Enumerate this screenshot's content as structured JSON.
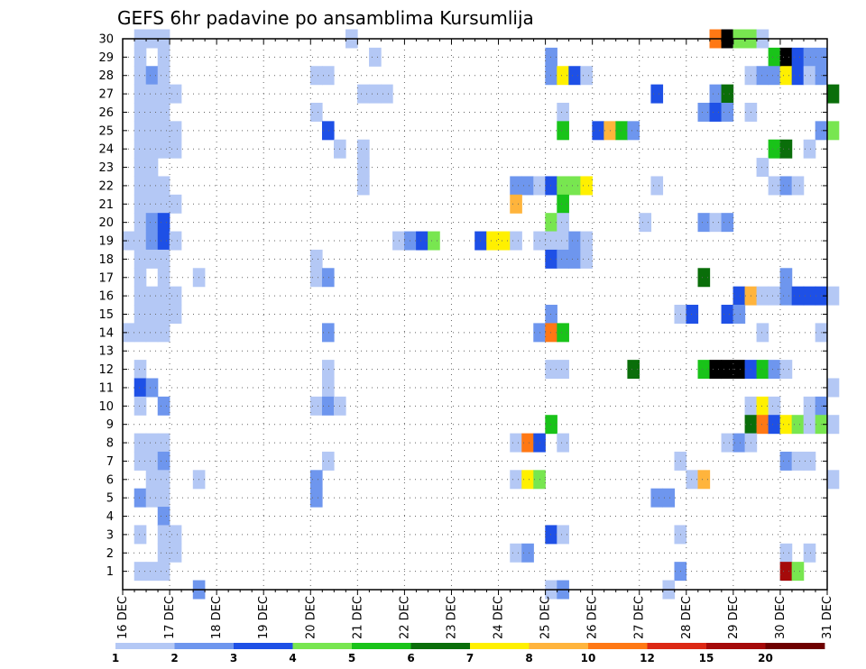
{
  "chart_data": {
    "type": "heatmap",
    "title": "GEFS 6hr padavine po ansamblima Kursumlija",
    "x_tick_labels": [
      "16 DEC",
      "17 DEC",
      "18 DEC",
      "19 DEC",
      "20 DEC",
      "21 DEC",
      "22 DEC",
      "23 DEC",
      "24 DEC",
      "25 DEC",
      "26 DEC",
      "27 DEC",
      "28 DEC",
      "29 DEC",
      "30 DEC",
      "31 DEC"
    ],
    "x_unit": "6-hour step from 16 DEC 00z",
    "x_range": [
      0,
      60
    ],
    "y_tick_labels": [
      "1",
      "2",
      "3",
      "4",
      "5",
      "6",
      "7",
      "8",
      "9",
      "10",
      "11",
      "12",
      "13",
      "14",
      "15",
      "16",
      "17",
      "18",
      "19",
      "20",
      "21",
      "22",
      "23",
      "24",
      "25",
      "26",
      "27",
      "28",
      "29",
      "30"
    ],
    "y_range": [
      0,
      30
    ],
    "grid": true,
    "legend": {
      "placement": "bottom",
      "labels": [
        "1",
        "2",
        "3",
        "4",
        "5",
        "6",
        "7",
        "8",
        "10",
        "12",
        "15",
        "20"
      ],
      "colors": [
        "#b4c8f5",
        "#6e96ee",
        "#1e50e6",
        "#78e650",
        "#19c319",
        "#0a6e0a",
        "#fff000",
        "#ffb43c",
        "#ff7814",
        "#dc2814",
        "#a50a0a",
        "#6e0000"
      ]
    },
    "cells": [
      [
        1,
        30,
        1
      ],
      [
        2,
        30,
        1
      ],
      [
        3,
        30,
        1
      ],
      [
        19,
        30,
        1
      ],
      [
        50,
        30,
        9
      ],
      [
        51,
        30,
        13
      ],
      [
        52,
        30,
        4
      ],
      [
        53,
        30,
        4
      ],
      [
        54,
        30,
        1
      ],
      [
        1,
        29,
        1
      ],
      [
        3,
        29,
        1
      ],
      [
        21,
        29,
        1
      ],
      [
        36,
        29,
        2
      ],
      [
        55,
        29,
        5
      ],
      [
        56,
        29,
        14
      ],
      [
        57,
        29,
        3
      ],
      [
        58,
        29,
        2
      ],
      [
        59,
        29,
        2
      ],
      [
        1,
        28,
        1
      ],
      [
        2,
        28,
        2
      ],
      [
        3,
        28,
        1
      ],
      [
        16,
        28,
        1
      ],
      [
        17,
        28,
        1
      ],
      [
        36,
        28,
        2
      ],
      [
        37,
        28,
        7
      ],
      [
        38,
        28,
        3
      ],
      [
        39,
        28,
        1
      ],
      [
        53,
        28,
        1
      ],
      [
        54,
        28,
        2
      ],
      [
        55,
        28,
        2
      ],
      [
        56,
        28,
        7
      ],
      [
        57,
        28,
        3
      ],
      [
        58,
        28,
        1
      ],
      [
        59,
        28,
        2
      ],
      [
        1,
        27,
        1
      ],
      [
        2,
        27,
        1
      ],
      [
        3,
        27,
        1
      ],
      [
        4,
        27,
        1
      ],
      [
        20,
        27,
        1
      ],
      [
        21,
        27,
        1
      ],
      [
        22,
        27,
        1
      ],
      [
        45,
        27,
        3
      ],
      [
        50,
        27,
        2
      ],
      [
        51,
        27,
        6
      ],
      [
        60,
        27,
        6
      ],
      [
        1,
        26,
        1
      ],
      [
        2,
        26,
        1
      ],
      [
        3,
        26,
        1
      ],
      [
        16,
        26,
        1
      ],
      [
        37,
        26,
        1
      ],
      [
        49,
        26,
        2
      ],
      [
        50,
        26,
        3
      ],
      [
        51,
        26,
        2
      ],
      [
        53,
        26,
        1
      ],
      [
        1,
        25,
        1
      ],
      [
        2,
        25,
        1
      ],
      [
        3,
        25,
        1
      ],
      [
        4,
        25,
        1
      ],
      [
        17,
        25,
        3
      ],
      [
        37,
        25,
        5
      ],
      [
        40,
        25,
        3
      ],
      [
        41,
        25,
        8
      ],
      [
        42,
        25,
        5
      ],
      [
        43,
        25,
        2
      ],
      [
        59,
        25,
        2
      ],
      [
        60,
        25,
        4
      ],
      [
        1,
        24,
        1
      ],
      [
        2,
        24,
        1
      ],
      [
        3,
        24,
        1
      ],
      [
        4,
        24,
        1
      ],
      [
        18,
        24,
        1
      ],
      [
        20,
        24,
        1
      ],
      [
        55,
        24,
        5
      ],
      [
        56,
        24,
        6
      ],
      [
        58,
        24,
        1
      ],
      [
        1,
        23,
        1
      ],
      [
        2,
        23,
        1
      ],
      [
        20,
        23,
        1
      ],
      [
        54,
        23,
        1
      ],
      [
        1,
        22,
        1
      ],
      [
        2,
        22,
        1
      ],
      [
        3,
        22,
        1
      ],
      [
        20,
        22,
        1
      ],
      [
        33,
        22,
        2
      ],
      [
        34,
        22,
        2
      ],
      [
        35,
        22,
        1
      ],
      [
        36,
        22,
        3
      ],
      [
        37,
        22,
        4
      ],
      [
        38,
        22,
        4
      ],
      [
        39,
        22,
        7
      ],
      [
        45,
        22,
        1
      ],
      [
        55,
        22,
        1
      ],
      [
        56,
        22,
        2
      ],
      [
        57,
        22,
        1
      ],
      [
        1,
        21,
        1
      ],
      [
        2,
        21,
        1
      ],
      [
        3,
        21,
        1
      ],
      [
        4,
        21,
        1
      ],
      [
        33,
        21,
        8
      ],
      [
        37,
        21,
        5
      ],
      [
        1,
        20,
        1
      ],
      [
        2,
        20,
        2
      ],
      [
        3,
        20,
        3
      ],
      [
        36,
        20,
        4
      ],
      [
        37,
        20,
        1
      ],
      [
        44,
        20,
        1
      ],
      [
        49,
        20,
        2
      ],
      [
        50,
        20,
        1
      ],
      [
        51,
        20,
        2
      ],
      [
        0,
        19,
        1
      ],
      [
        1,
        19,
        1
      ],
      [
        2,
        19,
        2
      ],
      [
        3,
        19,
        3
      ],
      [
        4,
        19,
        1
      ],
      [
        23,
        19,
        1
      ],
      [
        24,
        19,
        2
      ],
      [
        25,
        19,
        3
      ],
      [
        26,
        19,
        4
      ],
      [
        30,
        19,
        3
      ],
      [
        31,
        19,
        7
      ],
      [
        32,
        19,
        7
      ],
      [
        33,
        19,
        1
      ],
      [
        35,
        19,
        1
      ],
      [
        36,
        19,
        1
      ],
      [
        37,
        19,
        1
      ],
      [
        38,
        19,
        2
      ],
      [
        39,
        19,
        1
      ],
      [
        1,
        18,
        1
      ],
      [
        2,
        18,
        1
      ],
      [
        3,
        18,
        1
      ],
      [
        16,
        18,
        1
      ],
      [
        36,
        18,
        3
      ],
      [
        37,
        18,
        2
      ],
      [
        38,
        18,
        2
      ],
      [
        39,
        18,
        1
      ],
      [
        1,
        17,
        1
      ],
      [
        3,
        17,
        1
      ],
      [
        6,
        17,
        1
      ],
      [
        16,
        17,
        1
      ],
      [
        17,
        17,
        2
      ],
      [
        49,
        17,
        6
      ],
      [
        56,
        17,
        2
      ],
      [
        1,
        16,
        1
      ],
      [
        2,
        16,
        1
      ],
      [
        3,
        16,
        1
      ],
      [
        4,
        16,
        1
      ],
      [
        52,
        16,
        3
      ],
      [
        53,
        16,
        8
      ],
      [
        54,
        16,
        1
      ],
      [
        55,
        16,
        1
      ],
      [
        56,
        16,
        2
      ],
      [
        57,
        16,
        3
      ],
      [
        58,
        16,
        3
      ],
      [
        59,
        16,
        3
      ],
      [
        60,
        16,
        1
      ],
      [
        1,
        15,
        1
      ],
      [
        2,
        15,
        1
      ],
      [
        3,
        15,
        1
      ],
      [
        4,
        15,
        1
      ],
      [
        36,
        15,
        2
      ],
      [
        47,
        15,
        1
      ],
      [
        48,
        15,
        3
      ],
      [
        51,
        15,
        3
      ],
      [
        52,
        15,
        2
      ],
      [
        0,
        14,
        1
      ],
      [
        1,
        14,
        1
      ],
      [
        2,
        14,
        1
      ],
      [
        3,
        14,
        1
      ],
      [
        17,
        14,
        2
      ],
      [
        35,
        14,
        2
      ],
      [
        36,
        14,
        9
      ],
      [
        37,
        14,
        5
      ],
      [
        54,
        14,
        1
      ],
      [
        59,
        14,
        1
      ],
      [
        49,
        12,
        5
      ],
      [
        50,
        12,
        13
      ],
      [
        51,
        12,
        14
      ],
      [
        52,
        12,
        15
      ],
      [
        53,
        12,
        3
      ],
      [
        54,
        12,
        5
      ],
      [
        55,
        12,
        2
      ],
      [
        56,
        12,
        1
      ],
      [
        1,
        12,
        1
      ],
      [
        17,
        12,
        1
      ],
      [
        36,
        12,
        1
      ],
      [
        37,
        12,
        1
      ],
      [
        43,
        12,
        6
      ],
      [
        1,
        11,
        3
      ],
      [
        2,
        11,
        2
      ],
      [
        17,
        11,
        1
      ],
      [
        60,
        11,
        1
      ],
      [
        1,
        10,
        1
      ],
      [
        3,
        10,
        2
      ],
      [
        16,
        10,
        1
      ],
      [
        17,
        10,
        2
      ],
      [
        18,
        10,
        1
      ],
      [
        53,
        10,
        1
      ],
      [
        54,
        10,
        7
      ],
      [
        55,
        10,
        1
      ],
      [
        58,
        10,
        1
      ],
      [
        59,
        10,
        2
      ],
      [
        36,
        9,
        5
      ],
      [
        53,
        9,
        6
      ],
      [
        54,
        9,
        9
      ],
      [
        55,
        9,
        3
      ],
      [
        56,
        9,
        7
      ],
      [
        57,
        9,
        4
      ],
      [
        58,
        9,
        1
      ],
      [
        59,
        9,
        4
      ],
      [
        60,
        9,
        1
      ],
      [
        1,
        8,
        1
      ],
      [
        2,
        8,
        1
      ],
      [
        3,
        8,
        1
      ],
      [
        33,
        8,
        1
      ],
      [
        34,
        8,
        9
      ],
      [
        35,
        8,
        3
      ],
      [
        37,
        8,
        1
      ],
      [
        51,
        8,
        1
      ],
      [
        52,
        8,
        2
      ],
      [
        53,
        8,
        1
      ],
      [
        1,
        7,
        1
      ],
      [
        2,
        7,
        1
      ],
      [
        3,
        7,
        2
      ],
      [
        17,
        7,
        1
      ],
      [
        47,
        7,
        1
      ],
      [
        56,
        7,
        2
      ],
      [
        57,
        7,
        1
      ],
      [
        58,
        7,
        1
      ],
      [
        2,
        6,
        1
      ],
      [
        3,
        6,
        1
      ],
      [
        6,
        6,
        1
      ],
      [
        16,
        6,
        2
      ],
      [
        33,
        6,
        1
      ],
      [
        34,
        6,
        7
      ],
      [
        35,
        6,
        4
      ],
      [
        48,
        6,
        1
      ],
      [
        49,
        6,
        8
      ],
      [
        60,
        6,
        1
      ],
      [
        1,
        5,
        2
      ],
      [
        2,
        5,
        1
      ],
      [
        3,
        5,
        1
      ],
      [
        16,
        5,
        2
      ],
      [
        45,
        5,
        2
      ],
      [
        46,
        5,
        2
      ],
      [
        3,
        4,
        2
      ],
      [
        1,
        3,
        1
      ],
      [
        3,
        3,
        1
      ],
      [
        4,
        3,
        1
      ],
      [
        36,
        3,
        3
      ],
      [
        37,
        3,
        1
      ],
      [
        47,
        3,
        1
      ],
      [
        3,
        2,
        1
      ],
      [
        4,
        2,
        1
      ],
      [
        33,
        2,
        1
      ],
      [
        34,
        2,
        2
      ],
      [
        56,
        2,
        1
      ],
      [
        58,
        2,
        1
      ],
      [
        1,
        1,
        1
      ],
      [
        2,
        1,
        1
      ],
      [
        3,
        1,
        1
      ],
      [
        47,
        1,
        2
      ],
      [
        56,
        1,
        11
      ],
      [
        57,
        1,
        4
      ],
      [
        6,
        0,
        2
      ],
      [
        36,
        0,
        1
      ],
      [
        37,
        0,
        2
      ],
      [
        46,
        0,
        1
      ]
    ]
  }
}
